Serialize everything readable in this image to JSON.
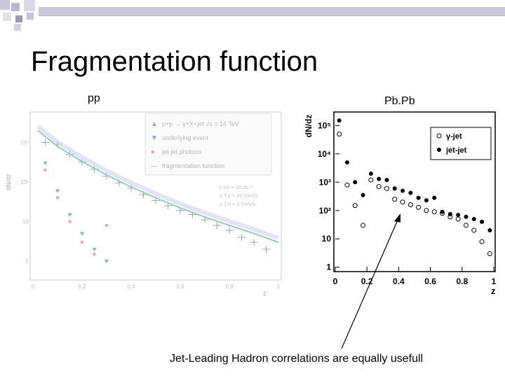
{
  "slide": {
    "title": "Fragmentation function",
    "caption": "Jet-Leading Hadron correlations are equally usefull"
  },
  "chart_data": [
    {
      "type": "scatter",
      "panel_label": "pp",
      "xlabel": "z",
      "ylabel": "dN/dz",
      "x_ticks": [
        "0",
        "0.2",
        "0.4",
        "0.6",
        "0.8",
        "1"
      ],
      "y_ticks": [
        "1",
        "10",
        "10²",
        "10³"
      ],
      "log_y": true,
      "legend": {
        "placement": "top-right",
        "entries": [
          "p+p → γ+X+jet √s = 14 TeV",
          "underlying event",
          "jet-jet photons",
          "fragmentation function"
        ]
      },
      "annotations": [
        "L int = 10 pb⁻¹",
        "p T,γ > 20 GeV/c",
        "p T,h > 2 GeV/c"
      ],
      "series": [
        {
          "name": "p+p → γ+X+jet √s = 14 TeV",
          "marker": "triangle-up",
          "color": "#9aa0c8",
          "x": [
            0.05,
            0.1,
            0.15,
            0.2,
            0.25,
            0.3,
            0.35,
            0.4,
            0.45,
            0.5,
            0.55,
            0.6,
            0.65,
            0.7,
            0.75,
            0.8,
            0.85,
            0.9,
            0.95
          ],
          "y": [
            1000,
            900,
            500,
            320,
            210,
            140,
            95,
            70,
            48,
            34,
            25,
            19,
            15,
            11,
            8,
            6,
            4,
            3,
            2
          ]
        },
        {
          "name": "underlying event",
          "marker": "triangle-down",
          "color": "#70aee0",
          "x": [
            0.05,
            0.1,
            0.15,
            0.2,
            0.25,
            0.3
          ],
          "y": [
            300,
            60,
            15,
            5,
            2,
            1
          ]
        },
        {
          "name": "jet-jet photons",
          "marker": "circle",
          "color": "#f0a0a0",
          "x": [
            0.05,
            0.1,
            0.15,
            0.2,
            0.25,
            0.3
          ],
          "y": [
            200,
            40,
            10,
            3,
            1.5,
            8
          ]
        },
        {
          "name": "fragmentation function",
          "marker": "line",
          "color": "#90d0b0",
          "x": [
            0.02,
            0.1,
            0.2,
            0.3,
            0.4,
            0.5,
            0.6,
            0.7,
            0.8,
            0.9,
            1.0
          ],
          "y": [
            2000,
            800,
            330,
            150,
            75,
            40,
            22,
            13,
            8,
            5,
            3
          ]
        }
      ]
    },
    {
      "type": "scatter",
      "panel_label": "Pb.Pb",
      "xlabel": "z",
      "ylabel": "dN/dz",
      "x_ticks": [
        "0",
        "0.2",
        "0.4",
        "0.6",
        "0.8",
        "1"
      ],
      "y_ticks": [
        "1",
        "10",
        "10²",
        "10³",
        "10⁴",
        "10⁵"
      ],
      "ylim": [
        0.7,
        300000
      ],
      "log_y": true,
      "legend": {
        "placement": "top-right",
        "entries": [
          "γ-jet",
          "jet-jet"
        ]
      },
      "series": [
        {
          "name": "γ-jet",
          "marker": "open-circle",
          "x": [
            0.025,
            0.075,
            0.125,
            0.175,
            0.225,
            0.275,
            0.325,
            0.375,
            0.425,
            0.475,
            0.525,
            0.575,
            0.625,
            0.675,
            0.725,
            0.775,
            0.825,
            0.875,
            0.925,
            0.975
          ],
          "y": [
            50000,
            800,
            150,
            30,
            1200,
            700,
            600,
            250,
            200,
            160,
            130,
            100,
            90,
            80,
            60,
            50,
            30,
            20,
            8,
            3
          ]
        },
        {
          "name": "jet-jet",
          "marker": "filled-circle",
          "x": [
            0.025,
            0.075,
            0.125,
            0.175,
            0.225,
            0.275,
            0.325,
            0.375,
            0.425,
            0.475,
            0.525,
            0.575,
            0.625,
            0.675,
            0.725,
            0.775,
            0.825,
            0.875,
            0.925,
            0.975
          ],
          "y": [
            150000,
            5000,
            1000,
            350,
            2000,
            1300,
            1200,
            600,
            500,
            420,
            280,
            230,
            280,
            90,
            75,
            70,
            60,
            50,
            40,
            20
          ]
        }
      ]
    }
  ]
}
